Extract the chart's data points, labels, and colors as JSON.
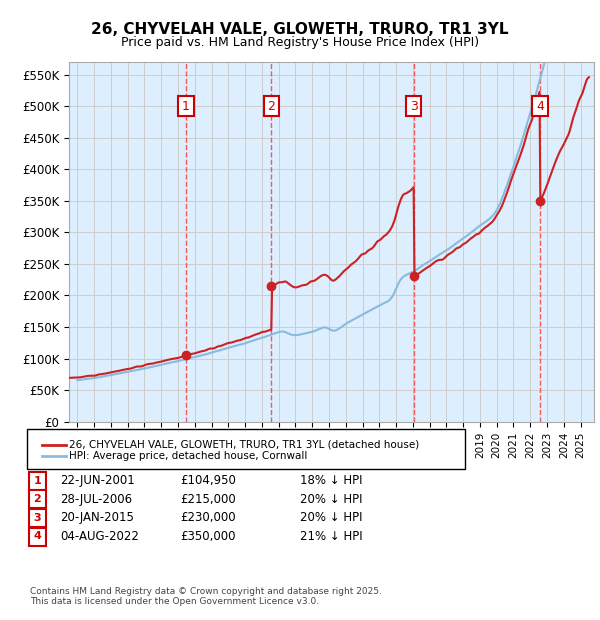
{
  "title": "26, CHYVELAH VALE, GLOWETH, TRURO, TR1 3YL",
  "subtitle": "Price paid vs. HM Land Registry's House Price Index (HPI)",
  "ylabel_ticks": [
    "£0",
    "£50K",
    "£100K",
    "£150K",
    "£200K",
    "£250K",
    "£300K",
    "£350K",
    "£400K",
    "£450K",
    "£500K",
    "£550K"
  ],
  "ytick_values": [
    0,
    50000,
    100000,
    150000,
    200000,
    250000,
    300000,
    350000,
    400000,
    450000,
    500000,
    550000
  ],
  "ylim": [
    0,
    570000
  ],
  "xlim_start": 1994.5,
  "xlim_end": 2025.8,
  "sale_dates": [
    2001.47,
    2006.57,
    2015.05,
    2022.59
  ],
  "sale_prices": [
    104950,
    215000,
    230000,
    350000
  ],
  "sale_labels": [
    "1",
    "2",
    "3",
    "4"
  ],
  "vline_color": "#ff4444",
  "vline_style": "--",
  "sale_box_color": "#cc0000",
  "legend_line1": "26, CHYVELAH VALE, GLOWETH, TRURO, TR1 3YL (detached house)",
  "legend_line2": "HPI: Average price, detached house, Cornwall",
  "legend_line1_color": "#cc2222",
  "legend_line2_color": "#88bbdd",
  "table_rows": [
    {
      "num": "1",
      "date": "22-JUN-2001",
      "price": "£104,950",
      "hpi": "18% ↓ HPI"
    },
    {
      "num": "2",
      "date": "28-JUL-2006",
      "price": "£215,000",
      "hpi": "20% ↓ HPI"
    },
    {
      "num": "3",
      "date": "20-JAN-2015",
      "price": "£230,000",
      "hpi": "20% ↓ HPI"
    },
    {
      "num": "4",
      "date": "04-AUG-2022",
      "price": "£350,000",
      "hpi": "21% ↓ HPI"
    }
  ],
  "footer": "Contains HM Land Registry data © Crown copyright and database right 2025.\nThis data is licensed under the Open Government Licence v3.0.",
  "bg_color": "#ddeeff",
  "plot_bg": "#ffffff",
  "grid_color": "#cccccc"
}
